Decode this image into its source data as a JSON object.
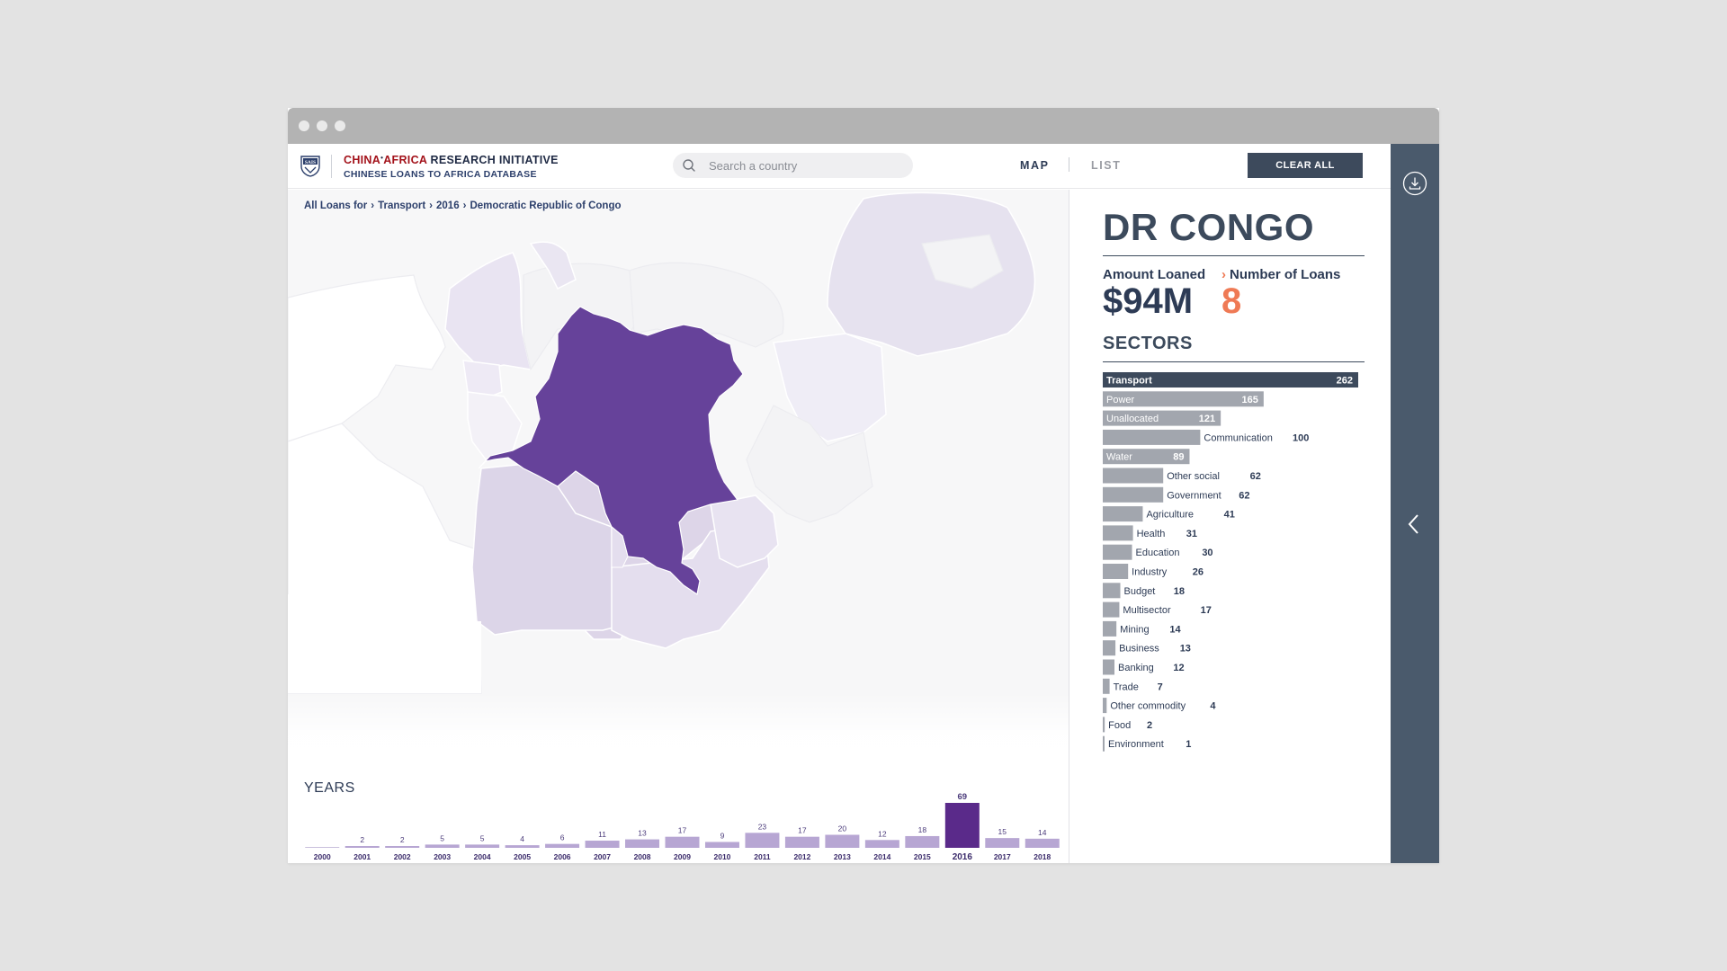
{
  "header": {
    "brand_part1": "CHINA",
    "brand_part2": "AFRICA",
    "brand_part3": " RESEARCH INITIATIVE",
    "brand_subtitle": "CHINESE LOANS TO AFRICA DATABASE",
    "search_placeholder": "Search a country",
    "nav_map": "MAP",
    "nav_list": "LIST",
    "clear_all": "CLEAR ALL"
  },
  "breadcrumb": [
    "All Loans for",
    "Transport",
    "2016",
    "Democratic Republic of Congo"
  ],
  "detail": {
    "country": "DR CONGO",
    "amount_label": "Amount Loaned",
    "amount_value": "$94M",
    "loans_label": "Number of Loans",
    "loans_value": "8",
    "sectors_title": "SECTORS"
  },
  "years_title": "YEARS",
  "colors": {
    "dark_slate": "#3d4a5c",
    "accent_orange": "#ef7a55",
    "selected_purple": "#66429a",
    "year_bar": "#b7a6d3",
    "year_bar_selected": "#5a2a8a",
    "sector_bar": "#a2a6ae",
    "sector_bar_selected": "#3d4a5c"
  },
  "chart_data": [
    {
      "type": "bar",
      "title": "YEARS",
      "categories": [
        "2000",
        "2001",
        "2002",
        "2003",
        "2004",
        "2005",
        "2006",
        "2007",
        "2008",
        "2009",
        "2010",
        "2011",
        "2012",
        "2013",
        "2014",
        "2015",
        "2016",
        "2017",
        "2018"
      ],
      "values": [
        null,
        2,
        2,
        5,
        5,
        4,
        6,
        11,
        13,
        17,
        9,
        23,
        17,
        20,
        12,
        18,
        69,
        15,
        14
      ],
      "selected": "2016"
    },
    {
      "type": "bar",
      "orientation": "horizontal",
      "title": "SECTORS",
      "categories": [
        "Transport",
        "Power",
        "Unallocated",
        "Communication",
        "Water",
        "Other social",
        "Government",
        "Agriculture",
        "Health",
        "Education",
        "Industry",
        "Budget",
        "Multisector",
        "Mining",
        "Business",
        "Banking",
        "Trade",
        "Other commodity",
        "Food",
        "Environment"
      ],
      "values": [
        262,
        165,
        121,
        100,
        89,
        62,
        62,
        41,
        31,
        30,
        26,
        18,
        17,
        14,
        13,
        12,
        7,
        4,
        2,
        1
      ],
      "selected": "Transport"
    }
  ]
}
